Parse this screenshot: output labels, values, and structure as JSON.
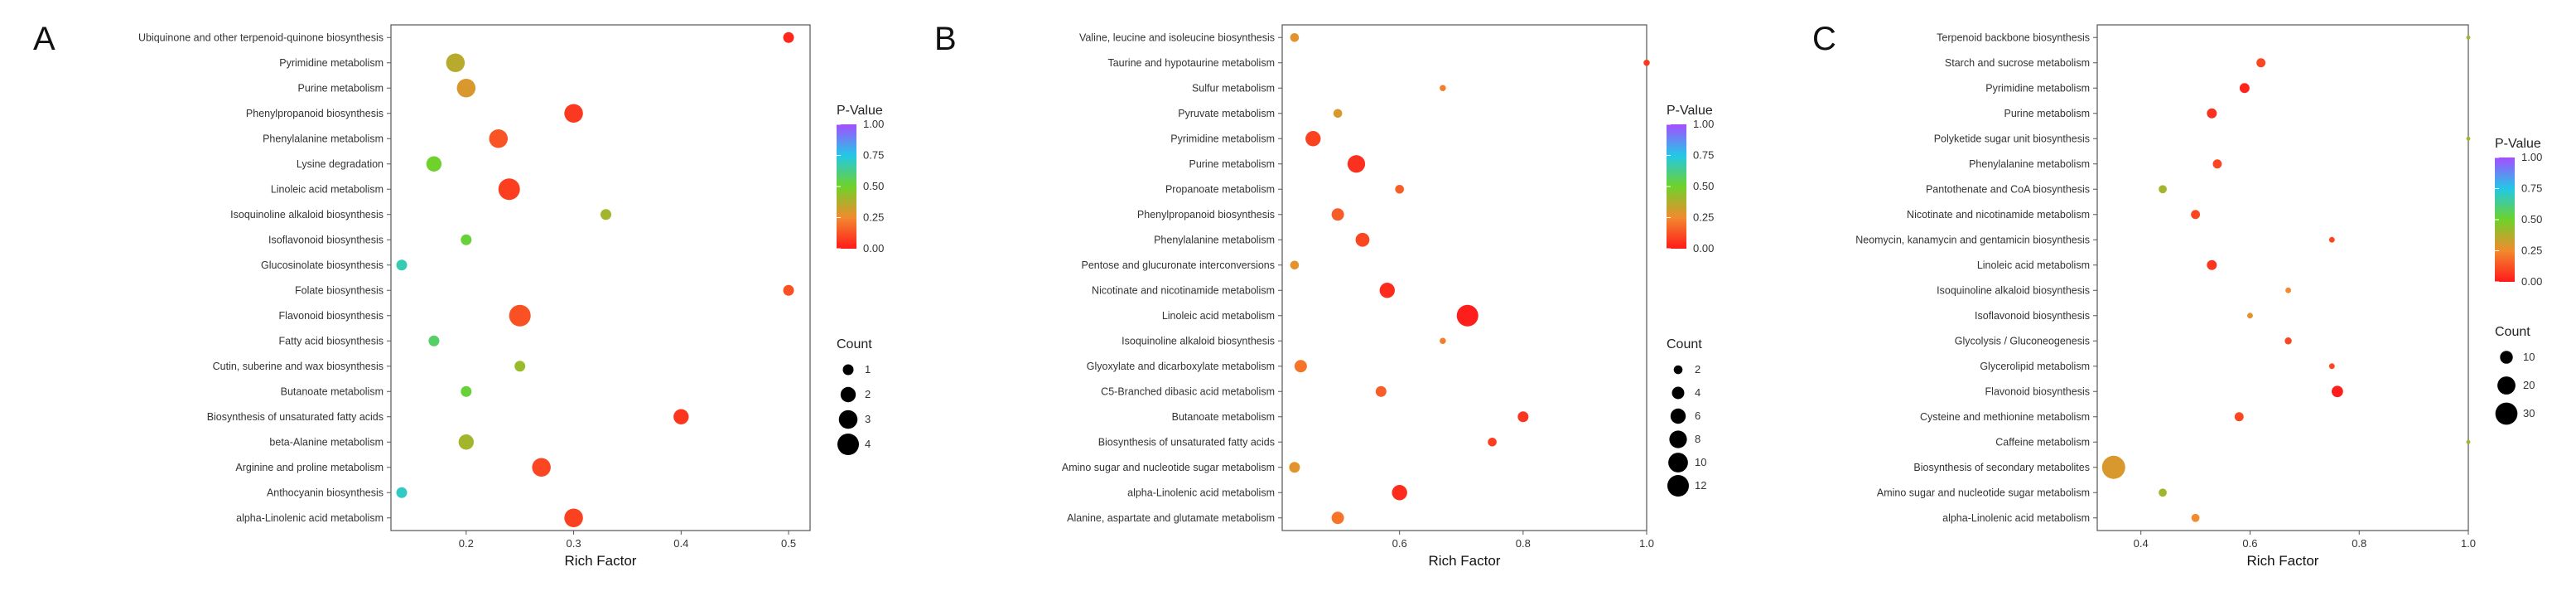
{
  "chart_data": [
    {
      "panel_label": "A",
      "type": "scatter",
      "xlabel": "Rich Factor",
      "xlim": [
        0.13,
        0.52
      ],
      "xticks": [
        "0.2",
        "0.3",
        "0.4",
        "0.5"
      ],
      "xtick_values": [
        0.2,
        0.3,
        0.4,
        0.5
      ],
      "color_legend_title": "P-Value",
      "color_ticks": [
        "1.00",
        "0.75",
        "0.50",
        "0.25",
        "0.00"
      ],
      "size_legend_title": "Count",
      "size_legend_values": [
        1,
        2,
        3,
        4
      ],
      "size_legend_labels": [
        "1",
        "2",
        "3",
        "4"
      ],
      "count_max": 4,
      "points": [
        {
          "pathway": "Ubiquinone and other terpenoid-quinone biosynthesis",
          "rich_factor": 0.5,
          "count": 1,
          "p_value": 0.03
        },
        {
          "pathway": "Pyrimidine metabolism",
          "rich_factor": 0.19,
          "count": 3,
          "p_value": 0.36
        },
        {
          "pathway": "Purine metabolism",
          "rich_factor": 0.2,
          "count": 3,
          "p_value": 0.3
        },
        {
          "pathway": "Phenylpropanoid biosynthesis",
          "rich_factor": 0.3,
          "count": 3,
          "p_value": 0.07
        },
        {
          "pathway": "Phenylalanine metabolism",
          "rich_factor": 0.23,
          "count": 3,
          "p_value": 0.13
        },
        {
          "pathway": "Lysine degradation",
          "rich_factor": 0.17,
          "count": 2,
          "p_value": 0.5
        },
        {
          "pathway": "Linoleic acid metabolism",
          "rich_factor": 0.24,
          "count": 4,
          "p_value": 0.08
        },
        {
          "pathway": "Isoquinoline alkaloid biosynthesis",
          "rich_factor": 0.33,
          "count": 1,
          "p_value": 0.4
        },
        {
          "pathway": "Isoflavonoid biosynthesis",
          "rich_factor": 0.2,
          "count": 1,
          "p_value": 0.52
        },
        {
          "pathway": "Glucosinolate biosynthesis",
          "rich_factor": 0.14,
          "count": 1,
          "p_value": 0.68
        },
        {
          "pathway": "Folate biosynthesis",
          "rich_factor": 0.5,
          "count": 1,
          "p_value": 0.12
        },
        {
          "pathway": "Flavonoid biosynthesis",
          "rich_factor": 0.25,
          "count": 4,
          "p_value": 0.12
        },
        {
          "pathway": "Fatty acid biosynthesis",
          "rich_factor": 0.17,
          "count": 1,
          "p_value": 0.58
        },
        {
          "pathway": "Cutin, suberine and wax biosynthesis",
          "rich_factor": 0.25,
          "count": 1,
          "p_value": 0.42
        },
        {
          "pathway": "Butanoate metabolism",
          "rich_factor": 0.2,
          "count": 1,
          "p_value": 0.52
        },
        {
          "pathway": "Biosynthesis of unsaturated fatty acids",
          "rich_factor": 0.4,
          "count": 2,
          "p_value": 0.06
        },
        {
          "pathway": "beta-Alanine metabolism",
          "rich_factor": 0.2,
          "count": 2,
          "p_value": 0.4
        },
        {
          "pathway": "Arginine and proline metabolism",
          "rich_factor": 0.27,
          "count": 3,
          "p_value": 0.1
        },
        {
          "pathway": "Anthocyanin biosynthesis",
          "rich_factor": 0.14,
          "count": 1,
          "p_value": 0.7
        },
        {
          "pathway": "alpha-Linolenic acid metabolism",
          "rich_factor": 0.3,
          "count": 3,
          "p_value": 0.09
        }
      ]
    },
    {
      "panel_label": "B",
      "type": "scatter",
      "xlabel": "Rich Factor",
      "xlim": [
        0.41,
        1.0
      ],
      "xticks": [
        "0.6",
        "0.8",
        "1.0"
      ],
      "xtick_values": [
        0.6,
        0.8,
        1.0
      ],
      "color_legend_title": "P-Value",
      "color_ticks": [
        "1.00",
        "0.75",
        "0.50",
        "0.25",
        "0.00"
      ],
      "size_legend_title": "Count",
      "size_legend_values": [
        2,
        4,
        6,
        8,
        10,
        12
      ],
      "size_legend_labels": [
        "2",
        "4",
        "6",
        "8",
        "10",
        "12"
      ],
      "count_max": 12,
      "points": [
        {
          "pathway": "Valine, leucine and isoleucine biosynthesis",
          "rich_factor": 0.43,
          "count": 2,
          "p_value": 0.28
        },
        {
          "pathway": "Taurine and hypotaurine metabolism",
          "rich_factor": 1.0,
          "count": 1,
          "p_value": 0.07
        },
        {
          "pathway": "Sulfur metabolism",
          "rich_factor": 0.67,
          "count": 1,
          "p_value": 0.22
        },
        {
          "pathway": "Pyruvate metabolism",
          "rich_factor": 0.5,
          "count": 2,
          "p_value": 0.3
        },
        {
          "pathway": "Pyrimidine metabolism",
          "rich_factor": 0.46,
          "count": 6,
          "p_value": 0.09
        },
        {
          "pathway": "Purine metabolism",
          "rich_factor": 0.53,
          "count": 8,
          "p_value": 0.05
        },
        {
          "pathway": "Propanoate metabolism",
          "rich_factor": 0.6,
          "count": 2,
          "p_value": 0.15
        },
        {
          "pathway": "Phenylpropanoid biosynthesis",
          "rich_factor": 0.5,
          "count": 4,
          "p_value": 0.15
        },
        {
          "pathway": "Phenylalanine metabolism",
          "rich_factor": 0.54,
          "count": 5,
          "p_value": 0.1
        },
        {
          "pathway": "Pentose and glucuronate interconversions",
          "rich_factor": 0.43,
          "count": 2,
          "p_value": 0.28
        },
        {
          "pathway": "Nicotinate and nicotinamide metabolism",
          "rich_factor": 0.58,
          "count": 6,
          "p_value": 0.04
        },
        {
          "pathway": "Linoleic acid metabolism",
          "rich_factor": 0.71,
          "count": 12,
          "p_value": 0.01
        },
        {
          "pathway": "Isoquinoline alkaloid biosynthesis",
          "rich_factor": 0.67,
          "count": 1,
          "p_value": 0.22
        },
        {
          "pathway": "Glyoxylate and dicarboxylate metabolism",
          "rich_factor": 0.44,
          "count": 4,
          "p_value": 0.2
        },
        {
          "pathway": "C5-Branched dibasic acid metabolism",
          "rich_factor": 0.57,
          "count": 3,
          "p_value": 0.15
        },
        {
          "pathway": "Butanoate metabolism",
          "rich_factor": 0.8,
          "count": 3,
          "p_value": 0.06
        },
        {
          "pathway": "Biosynthesis of unsaturated fatty acids",
          "rich_factor": 0.75,
          "count": 2,
          "p_value": 0.08
        },
        {
          "pathway": "Amino sugar and nucleotide sugar metabolism",
          "rich_factor": 0.43,
          "count": 3,
          "p_value": 0.28
        },
        {
          "pathway": "alpha-Linolenic acid metabolism",
          "rich_factor": 0.6,
          "count": 6,
          "p_value": 0.04
        },
        {
          "pathway": "Alanine, aspartate and glutamate metabolism",
          "rich_factor": 0.5,
          "count": 4,
          "p_value": 0.2
        }
      ]
    },
    {
      "panel_label": "C",
      "type": "scatter",
      "xlabel": "Rich Factor",
      "xlim": [
        0.32,
        1.0
      ],
      "xticks": [
        "0.4",
        "0.6",
        "0.8",
        "1.0"
      ],
      "xtick_values": [
        0.4,
        0.6,
        0.8,
        1.0
      ],
      "color_legend_title": "P-Value",
      "color_ticks": [
        "1.00",
        "0.75",
        "0.50",
        "0.25",
        "0.00"
      ],
      "size_legend_title": "Count",
      "size_legend_values": [
        10,
        20,
        30
      ],
      "size_legend_labels": [
        "10",
        "20",
        "30"
      ],
      "count_max": 33,
      "points": [
        {
          "pathway": "Terpenoid backbone biosynthesis",
          "rich_factor": 1.0,
          "count": 1,
          "p_value": 0.4
        },
        {
          "pathway": "Starch and sucrose metabolism",
          "rich_factor": 0.62,
          "count": 5,
          "p_value": 0.1
        },
        {
          "pathway": "Pyrimidine metabolism",
          "rich_factor": 0.59,
          "count": 6,
          "p_value": 0.02
        },
        {
          "pathway": "Purine metabolism",
          "rich_factor": 0.53,
          "count": 6,
          "p_value": 0.05
        },
        {
          "pathway": "Polyketide sugar unit biosynthesis",
          "rich_factor": 1.0,
          "count": 1,
          "p_value": 0.4
        },
        {
          "pathway": "Phenylalanine metabolism",
          "rich_factor": 0.54,
          "count": 5,
          "p_value": 0.1
        },
        {
          "pathway": "Pantothenate and CoA biosynthesis",
          "rich_factor": 0.44,
          "count": 4,
          "p_value": 0.4
        },
        {
          "pathway": "Nicotinate and nicotinamide metabolism",
          "rich_factor": 0.5,
          "count": 5,
          "p_value": 0.1
        },
        {
          "pathway": "Neomycin, kanamycin and gentamicin biosynthesis",
          "rich_factor": 0.75,
          "count": 2,
          "p_value": 0.1
        },
        {
          "pathway": "Linoleic acid metabolism",
          "rich_factor": 0.53,
          "count": 6,
          "p_value": 0.06
        },
        {
          "pathway": "Isoquinoline alkaloid biosynthesis",
          "rich_factor": 0.67,
          "count": 2,
          "p_value": 0.25
        },
        {
          "pathway": "Isoflavonoid biosynthesis",
          "rich_factor": 0.6,
          "count": 2,
          "p_value": 0.28
        },
        {
          "pathway": "Glycolysis / Gluconeogenesis",
          "rich_factor": 0.67,
          "count": 3,
          "p_value": 0.1
        },
        {
          "pathway": "Glycerolipid metabolism",
          "rich_factor": 0.75,
          "count": 2,
          "p_value": 0.1
        },
        {
          "pathway": "Flavonoid biosynthesis",
          "rich_factor": 0.76,
          "count": 8,
          "p_value": 0.01
        },
        {
          "pathway": "Cysteine and methionine metabolism",
          "rich_factor": 0.58,
          "count": 5,
          "p_value": 0.1
        },
        {
          "pathway": "Caffeine metabolism",
          "rich_factor": 1.0,
          "count": 1,
          "p_value": 0.4
        },
        {
          "pathway": "Biosynthesis of secondary metabolites",
          "rich_factor": 0.35,
          "count": 33,
          "p_value": 0.3
        },
        {
          "pathway": "Amino sugar and nucleotide sugar metabolism",
          "rich_factor": 0.44,
          "count": 4,
          "p_value": 0.4
        },
        {
          "pathway": "alpha-Linolenic acid metabolism",
          "rich_factor": 0.5,
          "count": 4,
          "p_value": 0.25
        }
      ]
    }
  ]
}
